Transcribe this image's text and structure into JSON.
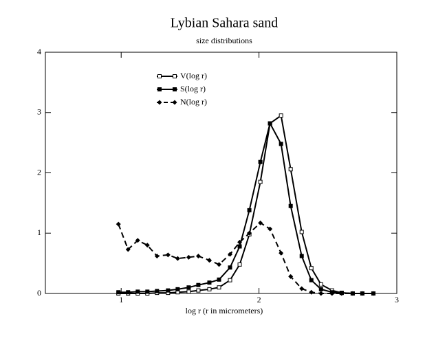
{
  "chart_data": {
    "type": "line",
    "title": "Lybian Sahara sand",
    "subtitle": "size distributions",
    "x_label": "log r (r in micrometers)",
    "x": [
      0.98,
      1.05,
      1.12,
      1.19,
      1.26,
      1.34,
      1.41,
      1.49,
      1.56,
      1.64,
      1.71,
      1.79,
      1.86,
      1.93,
      2.01,
      2.08,
      2.16,
      2.23,
      2.31,
      2.38,
      2.45,
      2.53,
      2.6,
      2.68,
      2.75,
      2.83
    ],
    "series": [
      {
        "name": "V(log r)",
        "color": "#000000",
        "marker": "open-square",
        "dashed": false,
        "values": [
          0,
          0,
          0,
          0,
          0.01,
          0.01,
          0.02,
          0.03,
          0.05,
          0.07,
          0.1,
          0.22,
          0.48,
          0.98,
          1.85,
          2.82,
          2.95,
          2.06,
          1.02,
          0.42,
          0.15,
          0.05,
          0.01,
          0,
          0,
          0
        ]
      },
      {
        "name": "S(log r)",
        "color": "#000000",
        "marker": "filled-square",
        "dashed": false,
        "values": [
          0.02,
          0.02,
          0.03,
          0.03,
          0.04,
          0.05,
          0.07,
          0.1,
          0.14,
          0.18,
          0.23,
          0.43,
          0.78,
          1.38,
          2.18,
          2.82,
          2.48,
          1.45,
          0.62,
          0.22,
          0.07,
          0.02,
          0.01,
          0,
          0,
          0
        ]
      },
      {
        "name": "N(log r)",
        "color": "#000000",
        "marker": "diamond",
        "dashed": true,
        "values": [
          1.15,
          0.73,
          0.88,
          0.8,
          0.62,
          0.64,
          0.58,
          0.6,
          0.62,
          0.55,
          0.48,
          0.65,
          0.85,
          1.0,
          1.17,
          1.07,
          0.67,
          0.28,
          0.08,
          0.02,
          0,
          0,
          0,
          0,
          0,
          0
        ]
      }
    ],
    "xlim": [
      0.45,
      3
    ],
    "xticks": [
      1,
      2,
      3
    ],
    "ylim": [
      0,
      4
    ],
    "yticks": [
      0,
      1,
      2,
      3,
      4
    ],
    "grid": false
  }
}
